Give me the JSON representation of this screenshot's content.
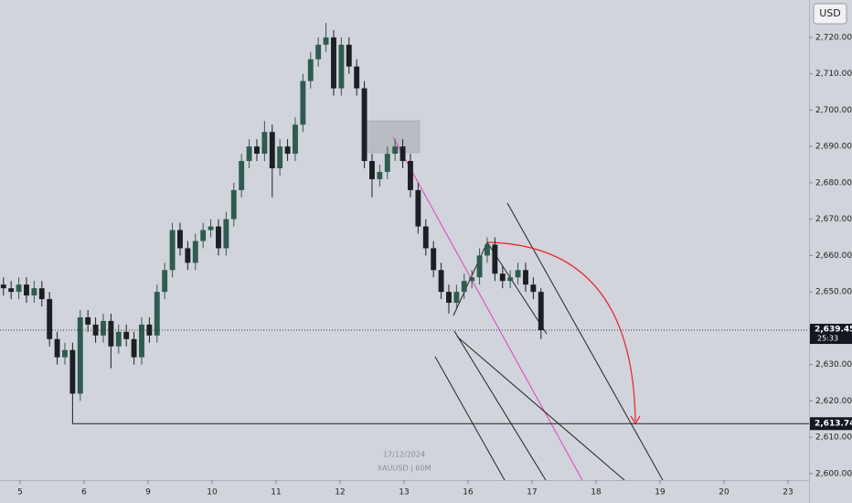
{
  "chart_data": {
    "type": "candlestick",
    "currency": "USD",
    "watermark_date": "17/12/2024",
    "symbol": "XAUUSD | 60M",
    "countdown": "25:33",
    "up_color": "#2f5b50",
    "down_color": "#1c1f24",
    "x": [
      -0.26,
      -0.14,
      -0.02,
      0.1,
      0.22,
      0.34,
      0.46,
      0.58,
      0.7,
      0.82,
      0.94,
      1.06,
      1.18,
      1.3,
      1.42,
      1.54,
      1.66,
      1.78,
      1.9,
      2.02,
      2.14,
      2.26,
      2.38,
      2.5,
      2.62,
      2.74,
      2.86,
      2.98,
      3.1,
      3.22,
      3.34,
      3.46,
      3.58,
      3.7,
      3.82,
      3.94,
      4.06,
      4.18,
      4.3,
      4.42,
      4.54,
      4.66,
      4.78,
      4.9,
      5.02,
      5.14,
      5.26,
      5.38,
      5.5,
      5.62,
      5.74,
      5.86,
      5.98,
      6.1,
      6.22,
      6.34,
      6.46,
      6.58,
      6.7,
      6.82,
      6.94,
      7.06,
      7.18,
      7.3,
      7.42,
      7.54,
      7.66,
      7.78,
      7.9,
      8.02,
      8.14
    ],
    "open": [
      2652,
      2651,
      2650,
      2652,
      2649,
      2651,
      2648,
      2637,
      2632,
      2634,
      2622,
      2643,
      2641,
      2638,
      2642,
      2635,
      2639,
      2637,
      2632,
      2641,
      2638,
      2650,
      2656,
      2667,
      2662,
      2658,
      2664,
      2667,
      2668,
      2662,
      2670,
      2678,
      2686,
      2690,
      2688,
      2694,
      2684,
      2690,
      2688,
      2696,
      2708,
      2714,
      2718,
      2720,
      2706,
      2718,
      2712,
      2706,
      2686,
      2681,
      2683,
      2688,
      2690,
      2686,
      2678,
      2668,
      2662,
      2656,
      2650,
      2647,
      2650,
      2653,
      2654,
      2660,
      2663,
      2655,
      2653,
      2654,
      2656,
      2652,
      2650
    ],
    "high": [
      2654,
      2653,
      2654,
      2654,
      2653,
      2653,
      2650,
      2639,
      2636,
      2636,
      2645,
      2645,
      2643,
      2644,
      2644,
      2641,
      2641,
      2639,
      2643,
      2643,
      2652,
      2658,
      2669,
      2669,
      2664,
      2666,
      2669,
      2670,
      2670,
      2672,
      2680,
      2688,
      2692,
      2692,
      2697,
      2696,
      2692,
      2692,
      2698,
      2710,
      2716,
      2720,
      2724,
      2722,
      2720,
      2720,
      2714,
      2708,
      2688,
      2685,
      2690,
      2692,
      2692,
      2688,
      2680,
      2670,
      2664,
      2658,
      2652,
      2652,
      2655,
      2656,
      2662,
      2665,
      2665,
      2657,
      2656,
      2658,
      2658,
      2654,
      2651
    ],
    "low": [
      2649,
      2648,
      2648,
      2647,
      2647,
      2646,
      2635,
      2630,
      2630,
      2613.74,
      2620,
      2639,
      2636,
      2636,
      2629,
      2633,
      2635,
      2630,
      2630,
      2636,
      2636,
      2648,
      2654,
      2660,
      2656,
      2656,
      2662,
      2665,
      2660,
      2660,
      2668,
      2676,
      2684,
      2686,
      2686,
      2676,
      2682,
      2686,
      2686,
      2694,
      2706,
      2712,
      2716,
      2704,
      2704,
      2710,
      2704,
      2684,
      2676,
      2679,
      2681,
      2686,
      2684,
      2676,
      2666,
      2660,
      2654,
      2648,
      2644,
      2645,
      2648,
      2651,
      2652,
      2658,
      2653,
      2651,
      2651,
      2652,
      2650,
      2648,
      2637
    ],
    "close": [
      2651,
      2650,
      2652,
      2649,
      2651,
      2648,
      2637,
      2632,
      2634,
      2622,
      2643,
      2641,
      2638,
      2642,
      2635,
      2639,
      2637,
      2632,
      2641,
      2638,
      2650,
      2656,
      2667,
      2662,
      2658,
      2664,
      2667,
      2668,
      2662,
      2670,
      2678,
      2686,
      2690,
      2688,
      2694,
      2684,
      2690,
      2688,
      2696,
      2708,
      2714,
      2718,
      2720,
      2706,
      2718,
      2712,
      2706,
      2686,
      2681,
      2683,
      2688,
      2690,
      2686,
      2678,
      2668,
      2662,
      2656,
      2650,
      2647,
      2650,
      2653,
      2654,
      2660,
      2663,
      2655,
      2653,
      2654,
      2656,
      2652,
      2650,
      2639.45
    ],
    "xlim": [
      -0.314,
      12.329
    ],
    "xticks": [
      {
        "value": 0,
        "label": "5"
      },
      {
        "value": 1,
        "label": "6"
      },
      {
        "value": 2,
        "label": "9"
      },
      {
        "value": 3,
        "label": "10"
      },
      {
        "value": 4,
        "label": "11"
      },
      {
        "value": 5,
        "label": "12"
      },
      {
        "value": 6,
        "label": "13"
      },
      {
        "value": 7,
        "label": "16"
      },
      {
        "value": 8,
        "label": "17"
      },
      {
        "value": 9,
        "label": "18"
      },
      {
        "value": 10,
        "label": "19"
      },
      {
        "value": 11,
        "label": "20"
      },
      {
        "value": 12,
        "label": "23"
      }
    ],
    "ylim": [
      2598.2,
      2730.3
    ],
    "yticks": [
      {
        "value": 2600,
        "label": "2,600.00"
      },
      {
        "value": 2610,
        "label": "2,610.00"
      },
      {
        "value": 2620,
        "label": "2,620.00"
      },
      {
        "value": 2630,
        "label": "2,630.00"
      },
      {
        "value": 2640,
        "label": "2,640.00"
      },
      {
        "value": 2650,
        "label": "2,650.00"
      },
      {
        "value": 2660,
        "label": "2,660.00"
      },
      {
        "value": 2670,
        "label": "2,670.00"
      },
      {
        "value": 2680,
        "label": "2,680.00"
      },
      {
        "value": 2690,
        "label": "2,690.00"
      },
      {
        "value": 2700,
        "label": "2,700.00"
      },
      {
        "value": 2710,
        "label": "2,710.00"
      },
      {
        "value": 2720,
        "label": "2,720.00"
      }
    ],
    "last_price": {
      "value": 2639.45,
      "label": "2,639.45"
    },
    "level": {
      "value": 2613.74,
      "label": "2,613.74"
    }
  }
}
